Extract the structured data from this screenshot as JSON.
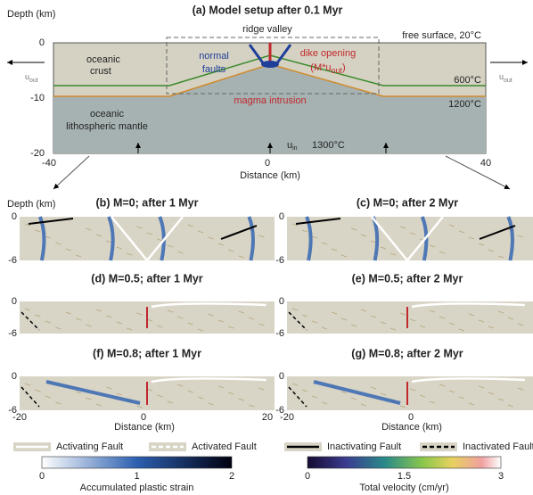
{
  "panel_a": {
    "title": "(a) Model setup after 0.1 Myr",
    "y_label": "Depth (km)",
    "x_label": "Distance (km)",
    "yticks": [
      0,
      -10,
      -20
    ],
    "xticks": [
      -40,
      0,
      40
    ],
    "ridge_valley": "ridge valley",
    "free_surface": "free surface, 20°C",
    "oceanic_crust": [
      "oceanic",
      "crust"
    ],
    "normal_faults": [
      "normal",
      "faults"
    ],
    "dike_opening": "dike opening",
    "dike_rate": {
      "pre": "(M*u",
      "sub": "out",
      "post": ")"
    },
    "isotherm_600": "600°C",
    "isotherm_1200": "1200°C",
    "magma_intrusion": "magma intrusion",
    "mantle": [
      "oceanic",
      "lithospheric mantle"
    ],
    "u_out_left": {
      "main": "u",
      "sub": "out"
    },
    "u_out_right": {
      "main": "u",
      "sub": "out"
    },
    "u_in": {
      "main": "u",
      "sub": "in"
    },
    "mantle_temp": "1300°C"
  },
  "panel_b_y_label": "Depth (km)",
  "panels": [
    {
      "title": "(b) M=0; after 1 Myr",
      "yticks": [
        0,
        -6
      ]
    },
    {
      "title": "(c) M=0; after 2 Myr",
      "yticks": [
        0,
        -6
      ]
    },
    {
      "title": "(d) M=0.5; after 1 Myr",
      "yticks": [
        0,
        -6
      ]
    },
    {
      "title": "(e) M=0.5; after 2 Myr",
      "yticks": [
        0,
        -6
      ]
    },
    {
      "title": "(f) M=0.8; after 1 Myr",
      "yticks": [
        0,
        -6
      ],
      "xticks": [
        -20,
        0,
        20
      ],
      "x_label": "Distance (km)"
    },
    {
      "title": "(g) M=0.8; after 2 Myr",
      "yticks": [
        0,
        -6
      ],
      "xticks": [
        -20,
        0
      ],
      "x_label": "Distance (km)"
    }
  ],
  "legend": [
    "Activating Fault",
    "Activated Fault",
    "Inactivating Fault",
    "Inactivated Fault"
  ],
  "colorbars": [
    {
      "ticks": [
        0,
        1,
        2
      ],
      "label": "Accumulated plastic strain"
    },
    {
      "ticks": [
        0,
        1.5,
        3
      ],
      "label": "Total velocity (cm/yr)"
    }
  ]
}
